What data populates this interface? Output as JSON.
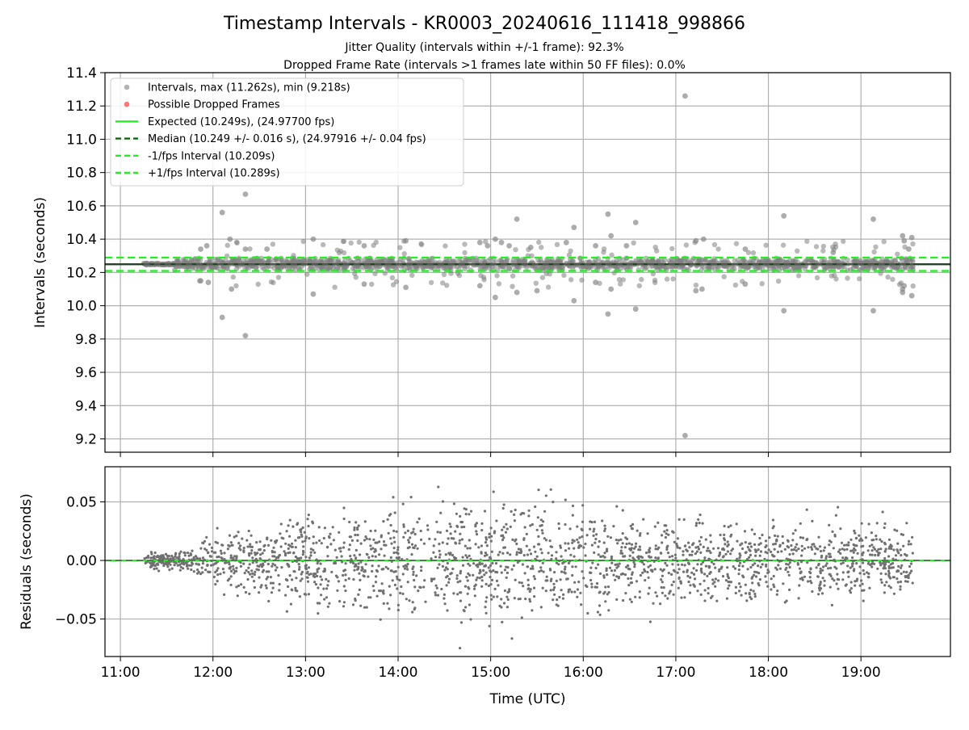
{
  "figure": {
    "title": "Timestamp Intervals - KR0003_20240616_111418_998866",
    "subtitle_1": "Jitter Quality (intervals within +/-1 frame): 92.3%",
    "subtitle_2": "Dropped Frame Rate (intervals >1 frames late within 50 FF files): 0.0%"
  },
  "colors": {
    "points": "#808080",
    "dropped": "#ff5555",
    "expected": "#22ee22",
    "median": "#116611",
    "fps_lines": "#22ee22",
    "median_black": "#333333",
    "grid": "#b0b0b0"
  },
  "chart_data": [
    {
      "type": "scatter",
      "name": "intervals",
      "ylabel": "Intervals (seconds)",
      "xlabel": "",
      "xlim": [
        "10:50",
        "19:58"
      ],
      "ylim": [
        9.12,
        11.4
      ],
      "y_ticks": [
        "9.2",
        "9.4",
        "9.6",
        "9.8",
        "10.0",
        "10.2",
        "10.4",
        "10.6",
        "10.8",
        "11.0",
        "11.2",
        "11.4"
      ],
      "grid": true,
      "legend_position": "top-left",
      "legend": [
        {
          "label": "Intervals, max (11.262s), min (9.218s)",
          "kind": "marker",
          "color": "#a0a0a0"
        },
        {
          "label": "Possible Dropped Frames",
          "kind": "marker",
          "color": "#ff5555"
        },
        {
          "label": "Expected (10.249s), (24.97700 fps)",
          "kind": "solid",
          "color": "#22ee22"
        },
        {
          "label": "Median (10.249 +/- 0.016 s), (24.97916 +/- 0.04 fps)",
          "kind": "dashed",
          "color": "#116611"
        },
        {
          "label": "-1/fps Interval (10.209s)",
          "kind": "dashed",
          "color": "#22ee22"
        },
        {
          "label": "+1/fps Interval (10.289s)",
          "kind": "dashed",
          "color": "#22ee22"
        }
      ],
      "reference_lines": {
        "expected": 10.249,
        "median": 10.249,
        "minus_fps": 10.209,
        "plus_fps": 10.289
      },
      "time_range": [
        "11:15",
        "19:34"
      ],
      "dense_band": [
        10.215,
        10.285
      ],
      "outliers": [
        {
          "x": "11:52",
          "y": 10.34
        },
        {
          "x": "11:56",
          "y": 10.36
        },
        {
          "x": "11:52",
          "y": 10.15
        },
        {
          "x": "11:57",
          "y": 10.14
        },
        {
          "x": "12:06",
          "y": 10.56
        },
        {
          "x": "12:06",
          "y": 9.93
        },
        {
          "x": "12:11",
          "y": 10.4
        },
        {
          "x": "12:12",
          "y": 10.1
        },
        {
          "x": "12:21",
          "y": 10.34
        },
        {
          "x": "12:21",
          "y": 10.67
        },
        {
          "x": "12:21",
          "y": 9.82
        },
        {
          "x": "12:35",
          "y": 10.34
        },
        {
          "x": "13:05",
          "y": 10.4
        },
        {
          "x": "13:05",
          "y": 10.07
        },
        {
          "x": "13:38",
          "y": 10.36
        },
        {
          "x": "13:38",
          "y": 10.13
        },
        {
          "x": "14:05",
          "y": 10.39
        },
        {
          "x": "14:05",
          "y": 10.11
        },
        {
          "x": "14:53",
          "y": 10.38
        },
        {
          "x": "14:58",
          "y": 10.36
        },
        {
          "x": "14:53",
          "y": 10.12
        },
        {
          "x": "15:03",
          "y": 10.4
        },
        {
          "x": "15:07",
          "y": 10.38
        },
        {
          "x": "15:03",
          "y": 10.05
        },
        {
          "x": "15:12",
          "y": 10.36
        },
        {
          "x": "15:17",
          "y": 10.08
        },
        {
          "x": "15:17",
          "y": 10.52
        },
        {
          "x": "15:26",
          "y": 10.35
        },
        {
          "x": "15:30",
          "y": 10.09
        },
        {
          "x": "15:49",
          "y": 10.38
        },
        {
          "x": "15:54",
          "y": 10.47
        },
        {
          "x": "15:54",
          "y": 10.03
        },
        {
          "x": "16:08",
          "y": 10.36
        },
        {
          "x": "16:08",
          "y": 10.14
        },
        {
          "x": "16:16",
          "y": 10.55
        },
        {
          "x": "16:16",
          "y": 9.95
        },
        {
          "x": "16:18",
          "y": 10.42
        },
        {
          "x": "16:18",
          "y": 10.1
        },
        {
          "x": "16:28",
          "y": 10.36
        },
        {
          "x": "16:34",
          "y": 10.5
        },
        {
          "x": "16:34",
          "y": 9.98
        },
        {
          "x": "17:06",
          "y": 11.26
        },
        {
          "x": "17:06",
          "y": 9.22
        },
        {
          "x": "17:13",
          "y": 10.39
        },
        {
          "x": "17:18",
          "y": 10.4
        },
        {
          "x": "17:13",
          "y": 10.09
        },
        {
          "x": "17:17",
          "y": 10.1
        },
        {
          "x": "17:45",
          "y": 10.34
        },
        {
          "x": "17:45",
          "y": 10.13
        },
        {
          "x": "18:10",
          "y": 10.54
        },
        {
          "x": "18:10",
          "y": 9.97
        },
        {
          "x": "18:42",
          "y": 10.32
        },
        {
          "x": "19:08",
          "y": 10.52
        },
        {
          "x": "19:08",
          "y": 9.97
        },
        {
          "x": "19:27",
          "y": 10.42
        },
        {
          "x": "19:28",
          "y": 10.39
        },
        {
          "x": "19:27",
          "y": 10.1
        },
        {
          "x": "19:28",
          "y": 10.12
        },
        {
          "x": "19:27",
          "y": 10.08
        },
        {
          "x": "19:33",
          "y": 10.41
        },
        {
          "x": "19:33",
          "y": 10.06
        },
        {
          "x": "19:31",
          "y": 10.34
        }
      ]
    },
    {
      "type": "scatter",
      "name": "residuals",
      "ylabel": "Residuals (seconds)",
      "xlabel": "Time (UTC)",
      "xlim": [
        "10:50",
        "19:58"
      ],
      "ylim": [
        -0.082,
        0.08
      ],
      "y_ticks": [
        "−0.05",
        "0.00",
        "0.05"
      ],
      "x_ticks": [
        "11:00",
        "12:00",
        "13:00",
        "14:00",
        "15:00",
        "16:00",
        "17:00",
        "18:00",
        "19:00"
      ],
      "grid": true,
      "zero_line": 0.0,
      "envelope_seconds": [
        {
          "x": "11:15",
          "spread": 0.005
        },
        {
          "x": "11:45",
          "spread": 0.008
        },
        {
          "x": "12:15",
          "spread": 0.025
        },
        {
          "x": "13:30",
          "spread": 0.035
        },
        {
          "x": "15:00",
          "spread": 0.045
        },
        {
          "x": "16:30",
          "spread": 0.035
        },
        {
          "x": "18:00",
          "spread": 0.03
        },
        {
          "x": "19:34",
          "spread": 0.025
        }
      ]
    }
  ]
}
